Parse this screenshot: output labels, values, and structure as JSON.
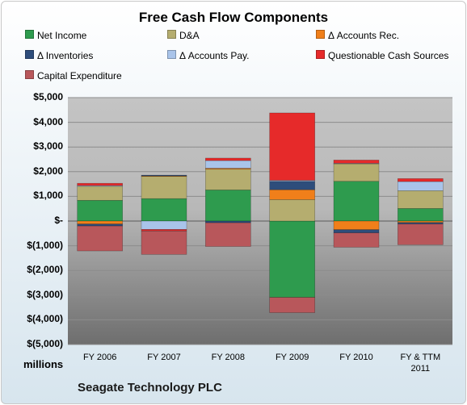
{
  "chart_data": {
    "type": "bar",
    "stacked": true,
    "title": "Free Cash Flow Components",
    "categories": [
      "FY 2006",
      "FY 2007",
      "FY 2008",
      "FY 2009",
      "FY 2010",
      "FY & TTM 2011"
    ],
    "category_lines": [
      [
        "FY 2006"
      ],
      [
        "FY 2007"
      ],
      [
        "FY 2008"
      ],
      [
        "FY 2009"
      ],
      [
        "FY 2010"
      ],
      [
        "FY & TTM",
        "2011"
      ]
    ],
    "ylim": [
      -5000,
      5000
    ],
    "ytick_values": [
      5000,
      4000,
      3000,
      2000,
      1000,
      0,
      -1000,
      -2000,
      -3000,
      -4000,
      -5000
    ],
    "ytick_labels": [
      "$5,000",
      "$4,000",
      "$3,000",
      "$2,000",
      "$1,000",
      "$-",
      "$(1,000)",
      "$(2,000)",
      "$(3,000)",
      "$(4,000)",
      "$(5,000)"
    ],
    "units_label": "millions",
    "legend_position": "top",
    "grid": true,
    "series": [
      {
        "name": "Net Income",
        "color": "#2e9b4e",
        "values": [
          840,
          910,
          1260,
          -3090,
          1610,
          510
        ]
      },
      {
        "name": "D&A",
        "color": "#b5ad6f",
        "values": [
          570,
          900,
          840,
          870,
          710,
          720
        ]
      },
      {
        "name": "Δ Accounts Rec.",
        "color": "#f07f1a",
        "values": [
          -120,
          20,
          40,
          400,
          -350,
          -60
        ]
      },
      {
        "name": "Δ Inventories",
        "color": "#2e4d7b",
        "values": [
          -80,
          30,
          -70,
          340,
          -130,
          -60
        ]
      },
      {
        "name": "Δ Accounts Pay.",
        "color": "#a9c4ea",
        "values": [
          30,
          -340,
          310,
          40,
          20,
          370
        ]
      },
      {
        "name": "Questionable Cash Sources",
        "color": "#e62a2a",
        "values": [
          90,
          -60,
          100,
          2730,
          130,
          120
        ]
      },
      {
        "name": "Capital Expenditure",
        "color": "#b8575b",
        "values": [
          -1010,
          -950,
          -960,
          -620,
          -580,
          -840
        ]
      }
    ]
  },
  "company": "Seagate Technology PLC"
}
